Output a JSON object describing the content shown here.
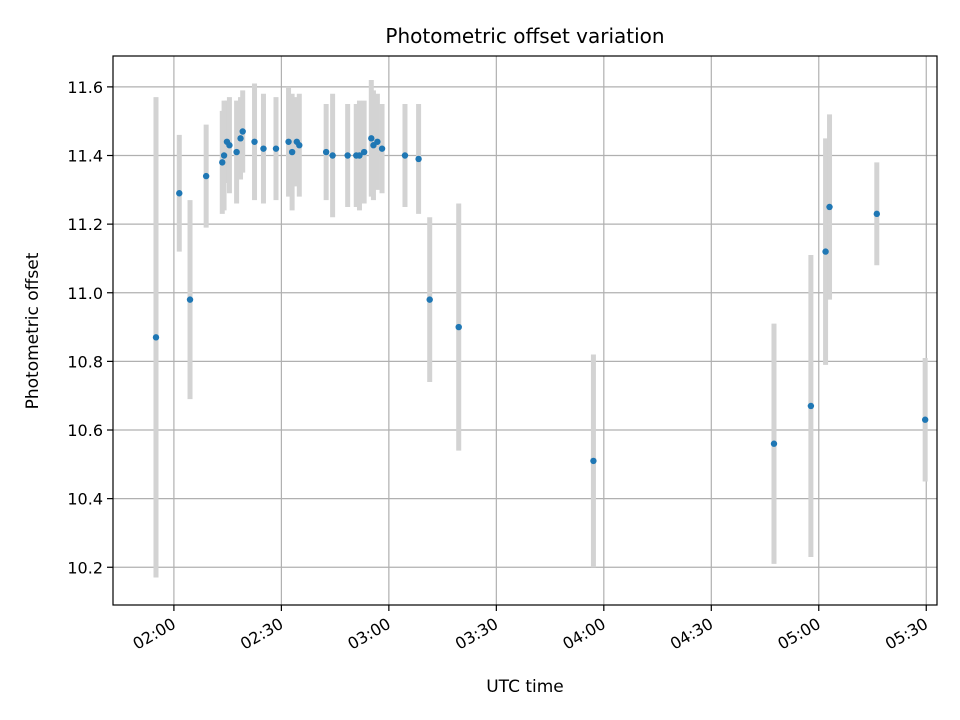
{
  "chart_data": {
    "type": "scatter",
    "title": "Photometric offset variation",
    "xlabel": "UTC time",
    "ylabel": "Photometric offset",
    "xlim": [
      "01:43",
      "05:33"
    ],
    "ylim": [
      10.09,
      11.69
    ],
    "x_ticks": [
      "02:00",
      "02:30",
      "03:00",
      "03:30",
      "04:00",
      "04:30",
      "05:00",
      "05:30"
    ],
    "y_ticks": [
      "10.2",
      "10.4",
      "10.6",
      "10.8",
      "11.0",
      "11.2",
      "11.4",
      "11.6"
    ],
    "grid": true,
    "colors": {
      "point": "#1f77b4",
      "errorbar": "#d3d3d3",
      "grid": "#b0b0b0"
    },
    "points": [
      {
        "x": "01:55:00",
        "y": 10.87,
        "err": 0.7
      },
      {
        "x": "02:01:30",
        "y": 11.29,
        "err": 0.17
      },
      {
        "x": "02:04:30",
        "y": 10.98,
        "err": 0.29
      },
      {
        "x": "02:09:00",
        "y": 11.34,
        "err": 0.15
      },
      {
        "x": "02:13:30",
        "y": 11.38,
        "err": 0.15
      },
      {
        "x": "02:14:00",
        "y": 11.4,
        "err": 0.16
      },
      {
        "x": "02:14:48",
        "y": 11.44,
        "err": 0.12
      },
      {
        "x": "02:15:30",
        "y": 11.43,
        "err": 0.14
      },
      {
        "x": "02:17:30",
        "y": 11.41,
        "err": 0.15
      },
      {
        "x": "02:18:36",
        "y": 11.45,
        "err": 0.12
      },
      {
        "x": "02:19:12",
        "y": 11.47,
        "err": 0.12
      },
      {
        "x": "02:22:30",
        "y": 11.44,
        "err": 0.17
      },
      {
        "x": "02:25:00",
        "y": 11.42,
        "err": 0.16
      },
      {
        "x": "02:28:30",
        "y": 11.42,
        "err": 0.15
      },
      {
        "x": "02:32:00",
        "y": 11.44,
        "err": 0.16
      },
      {
        "x": "02:33:00",
        "y": 11.41,
        "err": 0.17
      },
      {
        "x": "02:34:18",
        "y": 11.44,
        "err": 0.13
      },
      {
        "x": "02:35:00",
        "y": 11.43,
        "err": 0.15
      },
      {
        "x": "02:42:30",
        "y": 11.41,
        "err": 0.14
      },
      {
        "x": "02:44:18",
        "y": 11.4,
        "err": 0.18
      },
      {
        "x": "02:48:30",
        "y": 11.4,
        "err": 0.15
      },
      {
        "x": "02:50:54",
        "y": 11.4,
        "err": 0.15
      },
      {
        "x": "02:51:48",
        "y": 11.4,
        "err": 0.16
      },
      {
        "x": "02:53:06",
        "y": 11.41,
        "err": 0.15
      },
      {
        "x": "02:55:06",
        "y": 11.45,
        "err": 0.17
      },
      {
        "x": "02:55:42",
        "y": 11.43,
        "err": 0.16
      },
      {
        "x": "02:56:48",
        "y": 11.44,
        "err": 0.14
      },
      {
        "x": "02:58:06",
        "y": 11.42,
        "err": 0.13
      },
      {
        "x": "03:04:30",
        "y": 11.4,
        "err": 0.15
      },
      {
        "x": "03:08:18",
        "y": 11.39,
        "err": 0.16
      },
      {
        "x": "03:11:24",
        "y": 10.98,
        "err": 0.24
      },
      {
        "x": "03:19:30",
        "y": 10.9,
        "err": 0.36
      },
      {
        "x": "03:57:06",
        "y": 10.51,
        "err": 0.31
      },
      {
        "x": "04:47:30",
        "y": 10.56,
        "err": 0.35
      },
      {
        "x": "04:57:48",
        "y": 10.67,
        "err": 0.44
      },
      {
        "x": "05:01:54",
        "y": 11.12,
        "err": 0.33
      },
      {
        "x": "05:03:00",
        "y": 11.25,
        "err": 0.27
      },
      {
        "x": "05:16:12",
        "y": 11.23,
        "err": 0.15
      },
      {
        "x": "05:29:42",
        "y": 10.63,
        "err": 0.18
      }
    ]
  }
}
